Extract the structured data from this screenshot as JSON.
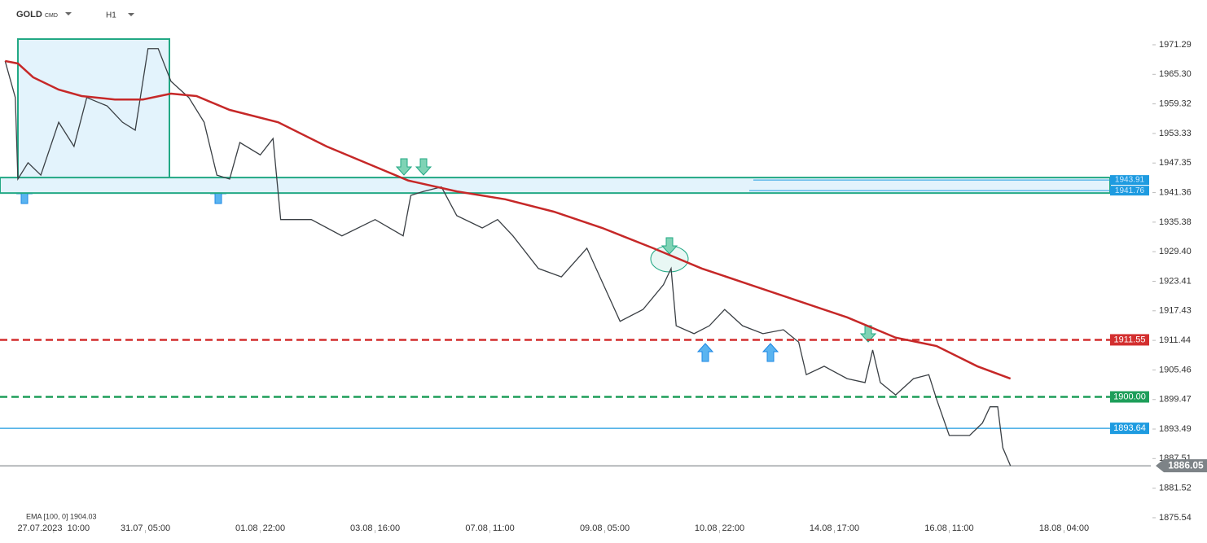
{
  "chart_data": {
    "type": "line",
    "title": "GOLD",
    "subtitle": "CMD",
    "timeframe": "H1",
    "indicator_label": "EMA [100, 0] 1904.03",
    "xlim": [
      -21,
      430
    ],
    "ylim": [
      1872.4,
      1980.35
    ],
    "xticks": [
      {
        "value": 0,
        "label": "27.07.2023  10:00"
      },
      {
        "value": 36,
        "label": "31.07  05:00"
      },
      {
        "value": 81,
        "label": "01.08  22:00"
      },
      {
        "value": 126,
        "label": "03.08  16:00"
      },
      {
        "value": 171,
        "label": "07.08  11:00"
      },
      {
        "value": 216,
        "label": "09.08  05:00"
      },
      {
        "value": 261,
        "label": "10.08  22:00"
      },
      {
        "value": 306,
        "label": "14.08  17:00"
      },
      {
        "value": 351,
        "label": "16.08  11:00"
      },
      {
        "value": 396,
        "label": "18.08  04:00"
      }
    ],
    "yticks": [
      1971.29,
      {
        "value": 1965.3,
        "label": "1965.30"
      },
      1959.32,
      1953.33,
      1947.35,
      1941.36,
      1935.38,
      {
        "value": 1929.4,
        "label": "1929.40"
      },
      1923.41,
      1917.43,
      1911.44,
      1905.46,
      1899.47,
      1893.49,
      1887.51,
      1881.52,
      1875.54
    ],
    "series": [
      {
        "name": "GOLD",
        "color": "#3a3f44",
        "x": [
          -19,
          -15,
          -14,
          -10,
          -5,
          2,
          8,
          13,
          21,
          27,
          32,
          37,
          41,
          46,
          53,
          59,
          64,
          69,
          73,
          81,
          86,
          89,
          101,
          113,
          126,
          137,
          140,
          145,
          152,
          158,
          168,
          174,
          180,
          190,
          199,
          209,
          217,
          222,
          231,
          239,
          242,
          244,
          251,
          257,
          263,
          270,
          278,
          286,
          292,
          295,
          302,
          311,
          318,
          321,
          324,
          330,
          337,
          343,
          346,
          351,
          359,
          364,
          367,
          370,
          372,
          375
        ],
        "values": [
          1968.0,
          1960.6,
          1944.1,
          1947.4,
          1944.9,
          1955.6,
          1950.7,
          1960.6,
          1958.9,
          1955.6,
          1954.0,
          1970.5,
          1970.5,
          1963.9,
          1960.6,
          1955.6,
          1944.9,
          1944.1,
          1951.5,
          1949.0,
          1952.3,
          1935.9,
          1935.9,
          1932.6,
          1935.9,
          1932.6,
          1940.8,
          1941.6,
          1942.5,
          1936.7,
          1934.2,
          1935.9,
          1932.6,
          1926.0,
          1924.3,
          1930.1,
          1921.0,
          1915.3,
          1917.7,
          1922.7,
          1926.0,
          1914.4,
          1912.8,
          1914.4,
          1917.7,
          1914.4,
          1912.8,
          1913.6,
          1911.1,
          1904.5,
          1906.2,
          1903.7,
          1902.9,
          1909.5,
          1902.9,
          1900.4,
          1903.7,
          1904.5,
          1899.6,
          1892.2,
          1892.2,
          1894.7,
          1898.0,
          1898.0,
          1889.7,
          1886.05
        ]
      },
      {
        "name": "EMA",
        "color": "#c62828",
        "x": [
          -19,
          -14,
          -8,
          2,
          11,
          24,
          35,
          46,
          56,
          69,
          88,
          107,
          126,
          139,
          158,
          177,
          196,
          215,
          235,
          254,
          273,
          292,
          311,
          330,
          346,
          362,
          375
        ],
        "values": [
          1968.0,
          1967.5,
          1964.7,
          1962.2,
          1960.9,
          1960.2,
          1960.2,
          1961.4,
          1960.9,
          1958.1,
          1955.6,
          1950.7,
          1946.6,
          1943.8,
          1941.6,
          1940.0,
          1937.5,
          1934.2,
          1930.1,
          1926.0,
          1922.7,
          1919.4,
          1916.1,
          1912.0,
          1910.3,
          1906.2,
          1903.7
        ]
      }
    ],
    "levels": [
      {
        "value": 1911.55,
        "label": "1911.55",
        "color": "#d32f2f",
        "style": "dashed"
      },
      {
        "value": 1900.0,
        "label": "1900.00",
        "color": "#1e9e5a",
        "style": "dashed"
      },
      {
        "value": 1893.64,
        "label": "1893.64",
        "color": "#1e9be0",
        "style": "solid"
      },
      {
        "value": 1886.05,
        "label": "1886.05",
        "color": "#7d8387",
        "style": "current"
      }
    ],
    "zone": {
      "high": 1943.91,
      "low": 1941.76,
      "labels": [
        "1943.91",
        "1941.76"
      ]
    }
  }
}
